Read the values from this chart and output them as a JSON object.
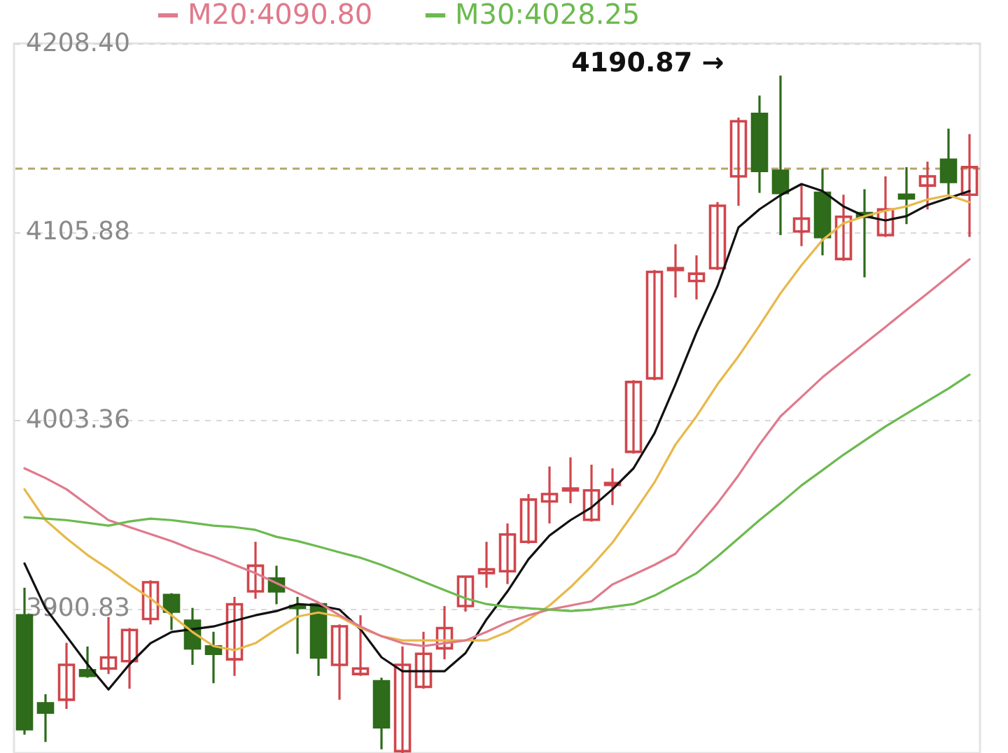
{
  "chart_data": {
    "type": "candlestick",
    "categories": [
      null,
      null,
      null,
      null,
      null,
      null,
      null,
      null,
      null,
      null,
      null,
      null,
      null,
      null,
      null,
      null,
      null,
      null,
      null,
      null,
      null,
      null,
      null,
      null,
      null,
      null,
      null,
      null,
      null,
      null,
      null,
      null,
      null,
      null,
      null,
      null,
      null,
      null,
      null,
      null,
      null,
      null,
      null,
      null,
      null,
      null
    ],
    "ohlc": [
      [
        3897,
        3912,
        3832,
        3835
      ],
      [
        3849,
        3854,
        3828,
        3844
      ],
      [
        3851,
        3882,
        3846,
        3870
      ],
      [
        3867,
        3880,
        3863,
        3864
      ],
      [
        3868,
        3896,
        3865,
        3874
      ],
      [
        3872,
        3890,
        3857,
        3889
      ],
      [
        3895,
        3916,
        3892,
        3915
      ],
      [
        3908,
        3909,
        3889,
        3899
      ],
      [
        3894,
        3901,
        3870,
        3879
      ],
      [
        3880,
        3888,
        3860,
        3876
      ],
      [
        3873,
        3907,
        3864,
        3903
      ],
      [
        3910,
        3937,
        3906,
        3924
      ],
      [
        3917,
        3924,
        3903,
        3910
      ],
      [
        3902,
        3907,
        3876,
        3901
      ],
      [
        3903,
        3904,
        3864,
        3874
      ],
      [
        3870,
        3892,
        3851,
        3891
      ],
      [
        3865,
        3897,
        3864,
        3868
      ],
      [
        3861,
        3863,
        3824,
        3836
      ],
      [
        3823,
        3880,
        3822,
        3870
      ],
      [
        3858,
        3888,
        3857,
        3876
      ],
      [
        3879,
        3902,
        3873,
        3890
      ],
      [
        3902,
        3918,
        3899,
        3918
      ],
      [
        3920,
        3937,
        3912,
        3922
      ],
      [
        3921,
        3947,
        3914,
        3941
      ],
      [
        3937,
        3963,
        3936,
        3960
      ],
      [
        3959,
        3978,
        3947,
        3963
      ],
      [
        3965,
        3983,
        3958,
        3966
      ],
      [
        3949,
        3979,
        3948,
        3965
      ],
      [
        3968,
        3977,
        3957,
        3969
      ],
      [
        3986,
        4025,
        3985,
        4024
      ],
      [
        4026,
        4085,
        4025,
        4084
      ],
      [
        4085,
        4099,
        4070,
        4086
      ],
      [
        4079,
        4093,
        4069,
        4083
      ],
      [
        4086,
        4122,
        4085,
        4120
      ],
      [
        4136,
        4168,
        4120,
        4166
      ],
      [
        4170,
        4180,
        4127,
        4139
      ],
      [
        4139,
        4190.87,
        4104,
        4127
      ],
      [
        4106,
        4132,
        4098,
        4113
      ],
      [
        4127,
        4140,
        4093,
        4103
      ],
      [
        4091,
        4126,
        4090,
        4114
      ],
      [
        4116,
        4129,
        4081,
        4114
      ],
      [
        4104,
        4136,
        4103,
        4118
      ],
      [
        4126,
        4141,
        4110,
        4124
      ],
      [
        4131,
        4144,
        4118,
        4136
      ],
      [
        4145,
        4162,
        4126,
        4133
      ],
      [
        4126,
        4159,
        4103,
        4141
      ]
    ],
    "series": [
      {
        "type": "line",
        "color": "#111111",
        "values": [
          3925.2,
          3900.8,
          3885.6,
          3870.3,
          3856.6,
          3870.3,
          3881.8,
          3887.9,
          3889.4,
          3890.9,
          3894.0,
          3897.0,
          3899.3,
          3903.1,
          3902.3,
          3900.1,
          3889.4,
          3874.1,
          3866.5,
          3866.5,
          3866.5,
          3876.4,
          3894.7,
          3910.0,
          3927.5,
          3940.4,
          3948.8,
          3955.7,
          3965.6,
          3977.0,
          3996.1,
          4022.8,
          4051.0,
          4076.2,
          4108.2,
          4118.1,
          4125.7,
          4131.8,
          4128.0,
          4119.6,
          4114.3,
          4112.0,
          4114.3,
          4120.4,
          4124.2,
          4128.0
        ]
      },
      {
        "type": "line",
        "color": "#e8b84a",
        "values": [
          3965.6,
          3948.8,
          3938.9,
          3929.8,
          3922.2,
          3913.8,
          3906.2,
          3897.0,
          3887.9,
          3880.2,
          3878.0,
          3881.8,
          3889.4,
          3896.3,
          3898.5,
          3896.3,
          3890.1,
          3885.6,
          3883.3,
          3883.3,
          3883.3,
          3883.3,
          3883.3,
          3887.9,
          3894.7,
          3902.3,
          3912.3,
          3923.7,
          3936.6,
          3952.6,
          3969.4,
          3990.0,
          4005.3,
          4022.8,
          4038.0,
          4054.8,
          4072.3,
          4087.6,
          4101.3,
          4110.5,
          4114.3,
          4117.3,
          4119.6,
          4123.4,
          4125.7,
          4121.9
        ]
      },
      {
        "type": "line",
        "name": "M20:4090.80",
        "color": "#e07a8c",
        "values": [
          3977.0,
          3971.7,
          3965.6,
          3957.2,
          3948.8,
          3945.0,
          3941.2,
          3937.4,
          3932.8,
          3929.0,
          3924.4,
          3919.9,
          3914.5,
          3909.2,
          3903.9,
          3897.0,
          3890.9,
          3885.6,
          3881.8,
          3880.2,
          3881.8,
          3883.3,
          3887.9,
          3893.2,
          3897.0,
          3900.1,
          3902.3,
          3904.6,
          3913.8,
          3919.1,
          3924.4,
          3930.5,
          3944.3,
          3958.0,
          3973.2,
          3990.0,
          4005.3,
          4015.9,
          4026.6,
          4035.8,
          4044.9,
          4054.0,
          4063.2,
          4072.3,
          4081.5,
          4090.8
        ]
      },
      {
        "type": "line",
        "name": "M30:4028.25",
        "color": "#6cba4f",
        "values": [
          3950.4,
          3949.6,
          3948.8,
          3947.3,
          3945.8,
          3948.1,
          3949.6,
          3948.8,
          3947.3,
          3945.8,
          3945.0,
          3943.5,
          3939.7,
          3937.4,
          3934.4,
          3931.3,
          3928.3,
          3924.4,
          3919.9,
          3915.3,
          3910.7,
          3906.2,
          3903.1,
          3901.6,
          3900.8,
          3900.1,
          3899.3,
          3900.1,
          3901.6,
          3903.1,
          3907.7,
          3913.8,
          3919.9,
          3929.0,
          3938.9,
          3948.8,
          3958.0,
          3967.7,
          3976.0,
          3984.4,
          3992.1,
          3999.8,
          4006.8,
          4013.6,
          4020.5,
          4028
        ]
      }
    ],
    "ylim": [
      3822,
      4208.4
    ],
    "yticks": [
      3900.83,
      4003.36,
      4105.88,
      {
        "value": 4208.4,
        "label": "4208.40"
      }
    ],
    "grid": "y",
    "legend": "top left",
    "ref_lines": [
      {
        "axis": "y",
        "value": 4140.2,
        "color": "#b5a56a",
        "line_style": "dashed"
      }
    ],
    "annotations": [
      "4190.87 →"
    ]
  }
}
